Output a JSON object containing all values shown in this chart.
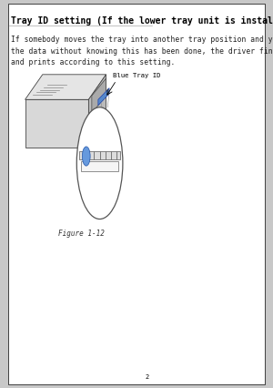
{
  "bg_color": "#c8c8c8",
  "page_bg": "#ffffff",
  "title": "Tray ID setting (If the lower tray unit is installed)",
  "body_text": "If somebody moves the tray into another tray position and you print\nthe data without knowing this has been done, the driver finds the tray\nand prints according to this setting.",
  "label_blue_tray": "Blue Tray ID",
  "caption": "Figure 1-12",
  "page_number": "2",
  "title_fontsize": 7.0,
  "body_fontsize": 5.8,
  "label_fontsize": 5.2,
  "caption_fontsize": 5.5,
  "title_color": "#000000",
  "body_color": "#222222",
  "label_color": "#000000",
  "border_color": "#000000",
  "line_color": "#555555"
}
